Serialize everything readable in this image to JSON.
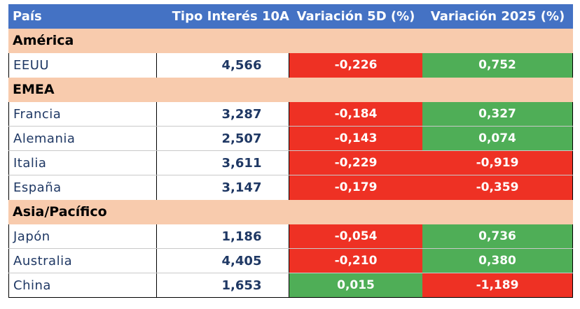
{
  "colors": {
    "header_bg": "#4472C4",
    "region_bg": "#F8CBAD",
    "negative_bg": "#EE3124",
    "positive_bg": "#4FAE57",
    "text_dark": "#1f3864"
  },
  "header": {
    "col_country": "País",
    "col_rate": "Tipo Interés 10A",
    "col_var5d": "Variación 5D (%)",
    "col_var2025": "Variación 2025 (%)"
  },
  "regions": [
    {
      "name": "América",
      "rows": [
        {
          "country": "EEUU",
          "rate": "4,566",
          "var5d": "-0,226",
          "var5d_sign": "neg",
          "var2025": "0,752",
          "var2025_sign": "pos"
        }
      ]
    },
    {
      "name": "EMEA",
      "rows": [
        {
          "country": "Francia",
          "rate": "3,287",
          "var5d": "-0,184",
          "var5d_sign": "neg",
          "var2025": "0,327",
          "var2025_sign": "pos"
        },
        {
          "country": "Alemania",
          "rate": "2,507",
          "var5d": "-0,143",
          "var5d_sign": "neg",
          "var2025": "0,074",
          "var2025_sign": "pos"
        },
        {
          "country": "Italia",
          "rate": "3,611",
          "var5d": "-0,229",
          "var5d_sign": "neg",
          "var2025": "-0,919",
          "var2025_sign": "neg"
        },
        {
          "country": "España",
          "rate": "3,147",
          "var5d": "-0,179",
          "var5d_sign": "neg",
          "var2025": "-0,359",
          "var2025_sign": "neg"
        }
      ]
    },
    {
      "name": "Asia/Pacífico",
      "rows": [
        {
          "country": "Japón",
          "rate": "1,186",
          "var5d": "-0,054",
          "var5d_sign": "neg",
          "var2025": "0,736",
          "var2025_sign": "pos"
        },
        {
          "country": "Australia",
          "rate": "4,405",
          "var5d": "-0,210",
          "var5d_sign": "neg",
          "var2025": "0,380",
          "var2025_sign": "pos"
        },
        {
          "country": "China",
          "rate": "1,653",
          "var5d": "0,015",
          "var5d_sign": "pos",
          "var2025": "-1,189",
          "var2025_sign": "neg"
        }
      ]
    }
  ]
}
